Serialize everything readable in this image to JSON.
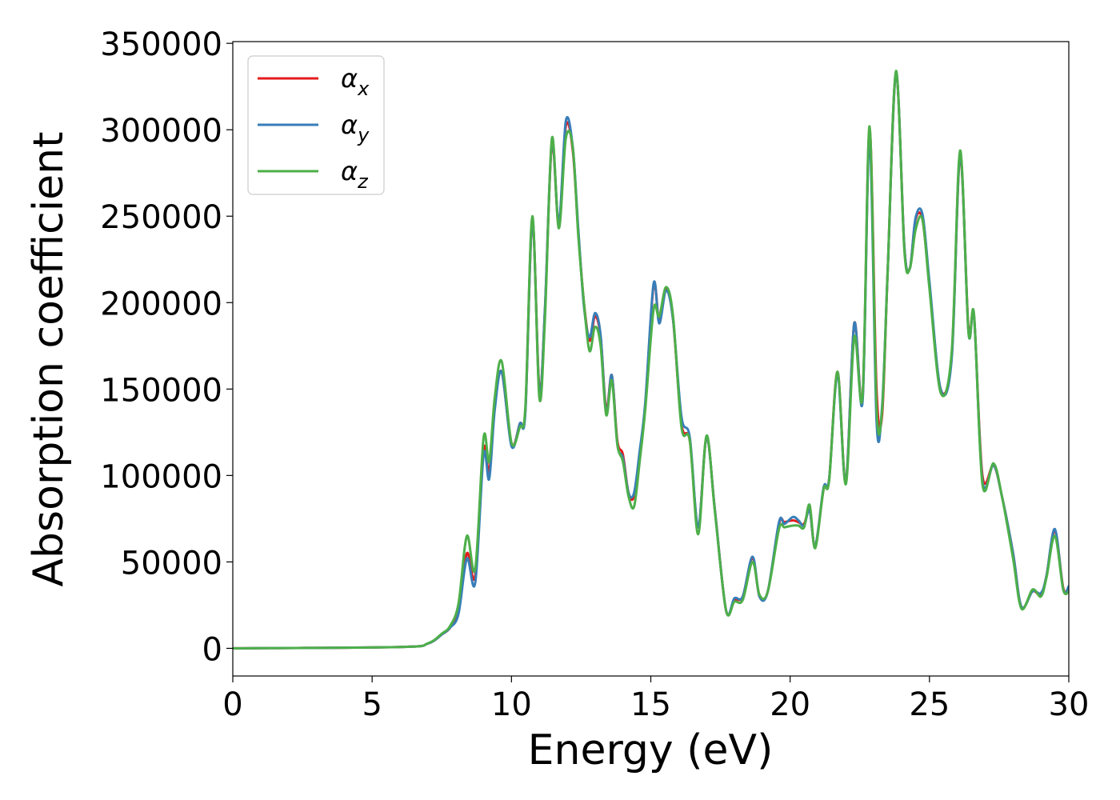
{
  "chart_data": {
    "type": "line",
    "xlabel": "Energy (eV)",
    "ylabel": "Absorption coefficient",
    "xlim": [
      0,
      30
    ],
    "ylim": [
      -16000,
      351000
    ],
    "xticks": [
      0,
      5,
      10,
      15,
      20,
      25,
      30
    ],
    "yticks": [
      0,
      50000,
      100000,
      150000,
      200000,
      250000,
      300000,
      350000
    ],
    "grid": false,
    "legend": {
      "position": "top-left"
    },
    "series": [
      {
        "name": "αx",
        "sym": "α",
        "sub": "x",
        "color": "#e41a1c",
        "x": [
          0,
          6,
          7,
          7.5,
          7.8,
          8.1,
          8.4,
          8.7,
          9.0,
          9.2,
          9.4,
          9.65,
          10.0,
          10.3,
          10.5,
          10.75,
          11.0,
          11.2,
          11.45,
          11.7,
          11.95,
          12.2,
          12.4,
          12.6,
          12.8,
          13.0,
          13.2,
          13.4,
          13.6,
          13.8,
          14.0,
          14.2,
          14.4,
          14.6,
          14.8,
          15.1,
          15.3,
          15.55,
          15.8,
          16.1,
          16.4,
          16.7,
          17.0,
          17.3,
          17.7,
          18.0,
          18.3,
          18.65,
          18.9,
          19.2,
          19.6,
          19.8,
          20.1,
          20.3,
          20.5,
          20.7,
          20.9,
          21.2,
          21.4,
          21.7,
          22.0,
          22.3,
          22.6,
          22.85,
          23.1,
          23.3,
          23.5,
          23.8,
          24.1,
          24.3,
          24.5,
          24.75,
          25.0,
          25.4,
          25.8,
          26.1,
          26.4,
          26.6,
          26.9,
          27.3,
          27.6,
          28.0,
          28.3,
          28.7,
          29.0,
          29.2,
          29.5,
          29.8,
          30
        ],
        "y": [
          0,
          800,
          2800,
          8000,
          12000,
          22000,
          55000,
          42000,
          115000,
          102000,
          140000,
          160000,
          118000,
          130000,
          138000,
          248000,
          150000,
          195000,
          292000,
          245000,
          302000,
          288000,
          240000,
          200000,
          178000,
          192000,
          180000,
          138000,
          158000,
          120000,
          112000,
          90000,
          88000,
          112000,
          140000,
          210000,
          190000,
          208000,
          190000,
          130000,
          120000,
          70000,
          122000,
          80000,
          22000,
          28000,
          30000,
          52000,
          30000,
          33000,
          72000,
          73000,
          74000,
          73000,
          72000,
          80000,
          59000,
          92000,
          98000,
          160000,
          96000,
          188000,
          145000,
          300000,
          150000,
          135000,
          218000,
          333000,
          232000,
          220000,
          248000,
          248000,
          210000,
          150000,
          170000,
          285000,
          185000,
          192000,
          100000,
          106000,
          88000,
          55000,
          24000,
          33000,
          31000,
          42000,
          68000,
          35000,
          34000
        ]
      },
      {
        "name": "αy",
        "sym": "α",
        "sub": "y",
        "color": "#377eb8",
        "x": [
          0,
          6,
          7,
          7.5,
          7.8,
          8.1,
          8.4,
          8.7,
          9.0,
          9.2,
          9.4,
          9.65,
          10.0,
          10.3,
          10.5,
          10.75,
          11.0,
          11.2,
          11.45,
          11.7,
          11.95,
          12.2,
          12.4,
          12.6,
          12.8,
          13.0,
          13.2,
          13.4,
          13.6,
          13.8,
          14.0,
          14.2,
          14.4,
          14.6,
          14.8,
          15.1,
          15.3,
          15.55,
          15.8,
          16.1,
          16.4,
          16.7,
          17.0,
          17.3,
          17.7,
          18.0,
          18.3,
          18.65,
          18.9,
          19.2,
          19.6,
          19.8,
          20.1,
          20.3,
          20.5,
          20.7,
          20.9,
          21.2,
          21.4,
          21.7,
          22.0,
          22.3,
          22.6,
          22.85,
          23.1,
          23.3,
          23.5,
          23.8,
          24.1,
          24.3,
          24.5,
          24.75,
          25.0,
          25.4,
          25.8,
          26.1,
          26.4,
          26.6,
          26.9,
          27.3,
          27.6,
          28.0,
          28.3,
          28.7,
          29.0,
          29.2,
          29.5,
          29.8,
          30
        ],
        "y": [
          0,
          800,
          2800,
          8000,
          12000,
          20000,
          52000,
          38000,
          112000,
          98000,
          138000,
          160000,
          117000,
          130000,
          137000,
          248000,
          148000,
          196000,
          293000,
          246000,
          305000,
          290000,
          242000,
          198000,
          180000,
          194000,
          181000,
          136000,
          158000,
          118000,
          110000,
          90000,
          90000,
          114000,
          142000,
          211000,
          188000,
          207000,
          190000,
          134000,
          122000,
          70000,
          122000,
          80000,
          22000,
          29000,
          30000,
          53000,
          30000,
          33000,
          73000,
          72000,
          76000,
          74000,
          71000,
          80000,
          59000,
          93000,
          98000,
          158000,
          96000,
          188000,
          143000,
          295000,
          132000,
          140000,
          218000,
          333000,
          232000,
          220000,
          249000,
          251000,
          212000,
          150000,
          168000,
          286000,
          183000,
          192000,
          97000,
          106000,
          88000,
          55000,
          24000,
          33000,
          32000,
          42000,
          69000,
          34000,
          36000
        ]
      },
      {
        "name": "αz",
        "sym": "α",
        "sub": "z",
        "color": "#4daf4a",
        "x": [
          0,
          6,
          7,
          7.5,
          7.8,
          8.1,
          8.4,
          8.7,
          9.0,
          9.2,
          9.4,
          9.65,
          10.0,
          10.3,
          10.5,
          10.75,
          11.0,
          11.2,
          11.45,
          11.7,
          11.95,
          12.2,
          12.4,
          12.6,
          12.8,
          13.0,
          13.2,
          13.4,
          13.6,
          13.8,
          14.0,
          14.2,
          14.4,
          14.6,
          14.8,
          15.1,
          15.3,
          15.55,
          15.8,
          16.1,
          16.4,
          16.7,
          17.0,
          17.3,
          17.7,
          18.0,
          18.3,
          18.65,
          18.9,
          19.2,
          19.6,
          19.8,
          20.1,
          20.3,
          20.5,
          20.7,
          20.9,
          21.2,
          21.4,
          21.7,
          22.0,
          22.3,
          22.6,
          22.85,
          23.1,
          23.3,
          23.5,
          23.8,
          24.1,
          24.3,
          24.5,
          24.75,
          25.0,
          25.4,
          25.8,
          26.1,
          26.4,
          26.6,
          26.9,
          27.3,
          27.6,
          28.0,
          28.3,
          28.7,
          29.0,
          29.2,
          29.5,
          29.8,
          30
        ],
        "y": [
          0,
          800,
          2900,
          8500,
          13000,
          26000,
          65000,
          46000,
          122000,
          108000,
          145000,
          166000,
          119000,
          128000,
          140000,
          250000,
          145000,
          190000,
          295000,
          243000,
          295000,
          290000,
          238000,
          200000,
          172000,
          186000,
          175000,
          135000,
          155000,
          118000,
          108000,
          88000,
          82000,
          108000,
          138000,
          196000,
          192000,
          209000,
          192000,
          128000,
          120000,
          66000,
          123000,
          79000,
          22000,
          27000,
          28000,
          50000,
          31000,
          33000,
          69000,
          70000,
          71000,
          71000,
          70000,
          83000,
          58000,
          92000,
          97000,
          160000,
          95000,
          180000,
          146000,
          302000,
          140000,
          138000,
          218000,
          334000,
          230000,
          220000,
          242000,
          248000,
          208000,
          148000,
          172000,
          288000,
          183000,
          193000,
          95000,
          107000,
          88000,
          52000,
          23000,
          34000,
          30000,
          41000,
          65000,
          34000,
          33000
        ]
      }
    ]
  }
}
